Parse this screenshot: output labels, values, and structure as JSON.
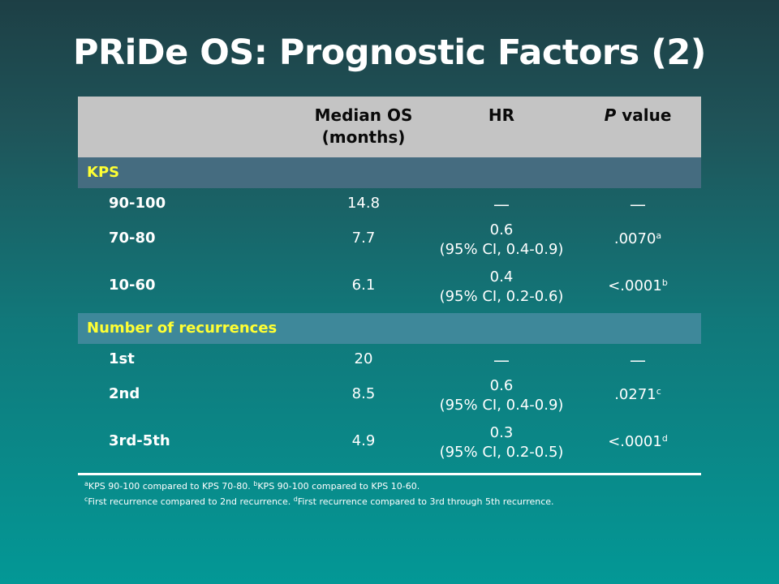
{
  "title": "PRiDe OS: Prognostic Factors (2)",
  "header": {
    "median_os": "Median OS",
    "median_os_unit": "(months)",
    "hr": "HR",
    "p_italic": "P",
    "p_rest": " value"
  },
  "sections": [
    {
      "label": "KPS",
      "rows": [
        {
          "label": "90-100",
          "median_os": "14.8",
          "hr": "—",
          "hr_ci": "",
          "p": "—",
          "p_sup": ""
        },
        {
          "label": "70-80",
          "median_os": "7.7",
          "hr": "0.6",
          "hr_ci": "(95% CI, 0.4-0.9)",
          "p": ".0070",
          "p_sup": "a"
        },
        {
          "label": "10-60",
          "median_os": "6.1",
          "hr": "0.4",
          "hr_ci": "(95% CI, 0.2-0.6)",
          "p": "<.0001",
          "p_sup": "b"
        }
      ]
    },
    {
      "label": "Number of recurrences",
      "rows": [
        {
          "label": "1st",
          "median_os": "20",
          "hr": "—",
          "hr_ci": "",
          "p": "—",
          "p_sup": ""
        },
        {
          "label": "2nd",
          "median_os": "8.5",
          "hr": "0.6",
          "hr_ci": "(95% CI, 0.4-0.9)",
          "p": ".0271",
          "p_sup": "c"
        },
        {
          "label": "3rd-5th",
          "median_os": "4.9",
          "hr": "0.3",
          "hr_ci": "(95% CI, 0.2-0.5)",
          "p": "<.0001",
          "p_sup": "d"
        }
      ]
    }
  ],
  "footnotes": {
    "a_mark": "a",
    "a_text": "KPS 90-100 compared to KPS 70-80. ",
    "b_mark": "b",
    "b_text": "KPS 90-100 compared to KPS 10-60.",
    "c_mark": "c",
    "c_text": "First recurrence compared to 2nd recurrence. ",
    "d_mark": "d",
    "d_text": "First recurrence compared to 3rd through 5th recurrence."
  }
}
